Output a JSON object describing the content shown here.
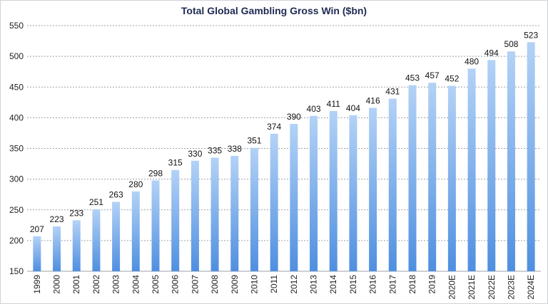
{
  "chart_data": {
    "type": "bar",
    "title": "Total Global Gambling Gross Win ($bn)",
    "xlabel": "",
    "ylabel": "",
    "ylim": [
      150,
      550
    ],
    "yticks": [
      150,
      200,
      250,
      300,
      350,
      400,
      450,
      500,
      550
    ],
    "grid": true,
    "categories": [
      "1999",
      "2000",
      "2001",
      "2002",
      "2003",
      "2004",
      "2005",
      "2006",
      "2007",
      "2008",
      "2009",
      "2010",
      "2011",
      "2012",
      "2013",
      "2014",
      "2015",
      "2016",
      "2017",
      "2018",
      "2019",
      "2020E",
      "2021E",
      "2022E",
      "2023E",
      "2024E"
    ],
    "values": [
      207,
      223,
      233,
      251,
      263,
      280,
      298,
      315,
      330,
      335,
      338,
      351,
      374,
      390,
      403,
      411,
      404,
      416,
      431,
      453,
      457,
      452,
      480,
      494,
      508,
      523
    ],
    "colors": {
      "bar_top": "#b3d2f6",
      "bar_bottom": "#4f8fe0",
      "grid": "#9aa0a8",
      "title": "#1f2a52"
    }
  }
}
